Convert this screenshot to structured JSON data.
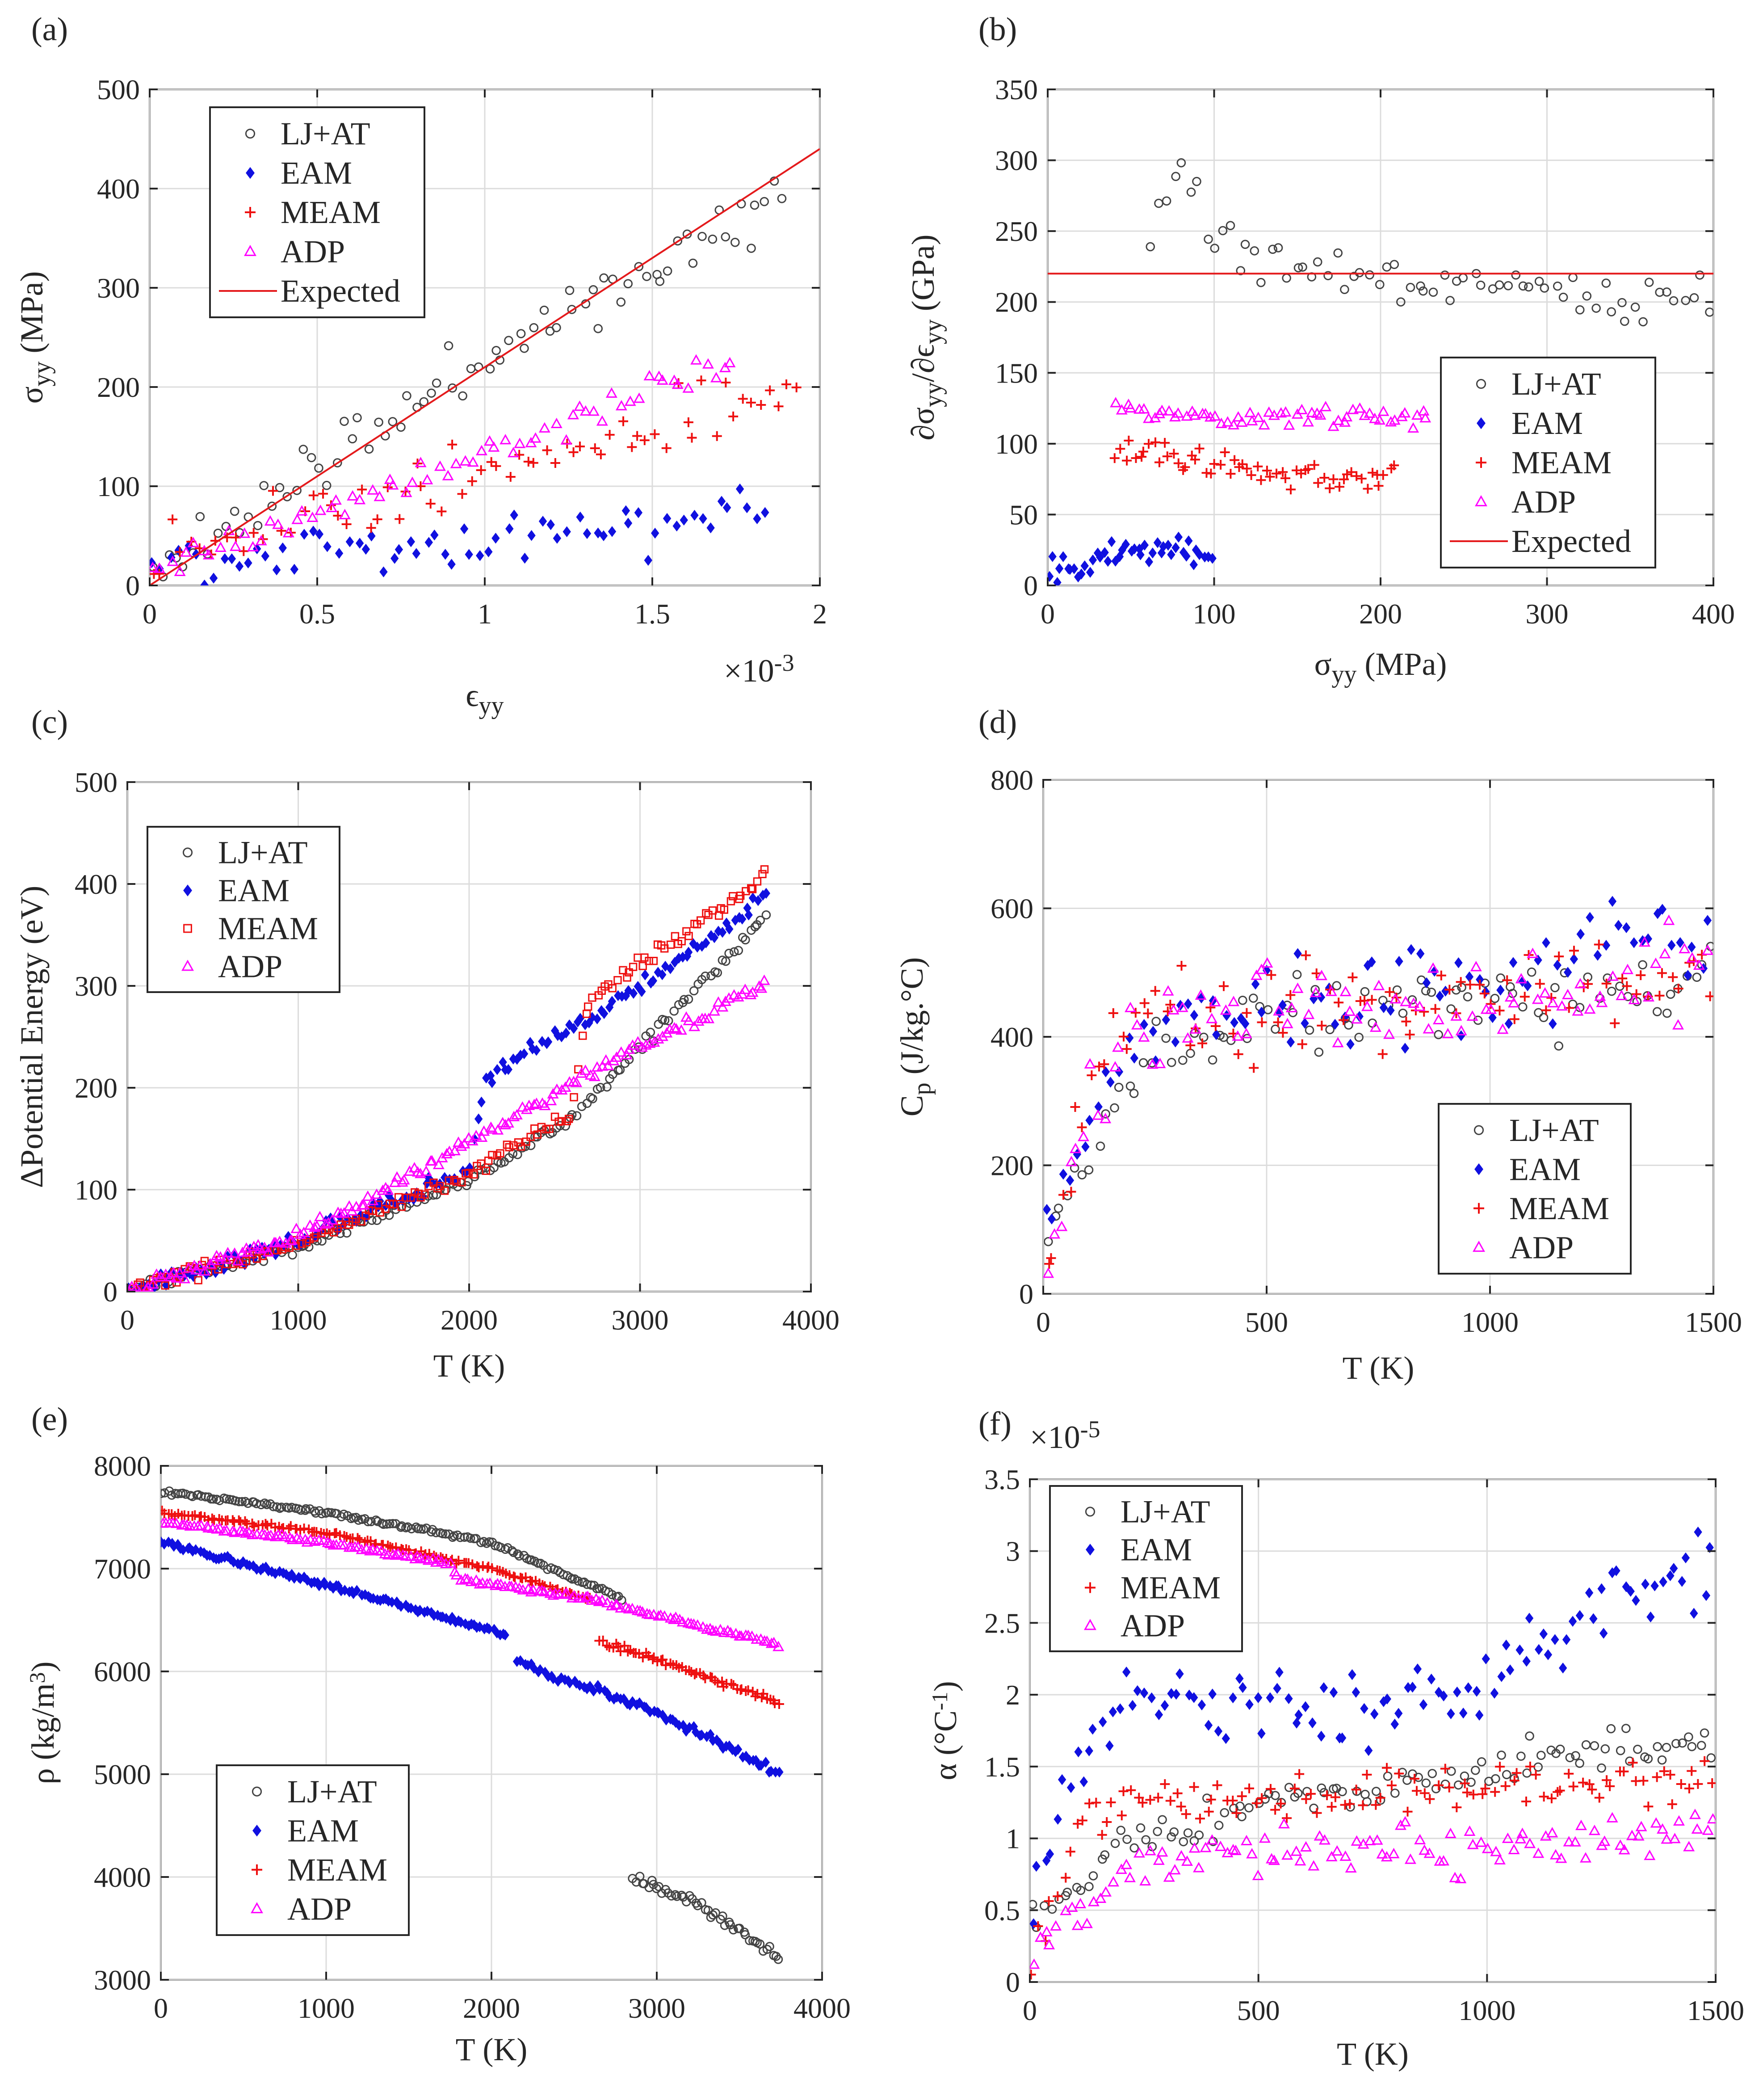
{
  "colors": {
    "LJ+AT": "#444444",
    "EAM": "#1010e0",
    "MEAM": "#ee1010",
    "ADP": "#ff00ff",
    "Expected": "#e41a1c"
  },
  "chart_data": [
    {
      "id": "a",
      "type": "scatter",
      "panel_label": "(a)",
      "title": "",
      "xlabel": "ϵyy",
      "ylabel": "σyy (MPa)",
      "x_multiplier_label": "×10",
      "x_multiplier_exp": "-3",
      "xlim": [
        0,
        2
      ],
      "ylim": [
        0,
        500
      ],
      "xticks": [
        0,
        0.5,
        1,
        1.5,
        2
      ],
      "xtick_labels": [
        "0",
        "0.5",
        "1",
        "1.5",
        "2"
      ],
      "yticks": [
        0,
        100,
        200,
        300,
        400,
        500
      ],
      "ytick_labels": [
        "0",
        "100",
        "200",
        "300",
        "400",
        "500"
      ],
      "grid": true,
      "legend_position": "top-left",
      "legend": [
        "LJ+AT",
        "EAM",
        "MEAM",
        "ADP",
        "Expected"
      ],
      "series": [
        {
          "name": "LJ+AT",
          "marker": "circle",
          "trend": [
            [
              0,
              10
            ],
            [
              0.5,
              120
            ],
            [
              1,
              230
            ],
            [
              1.5,
              320
            ],
            [
              1.9,
              390
            ]
          ],
          "noise": 22,
          "count": 80,
          "seed": 11
        },
        {
          "name": "EAM",
          "marker": "diamond",
          "trend": [
            [
              0,
              20
            ],
            [
              0.5,
              40
            ],
            [
              1,
              45
            ],
            [
              1.5,
              60
            ],
            [
              1.85,
              75
            ]
          ],
          "noise": 22,
          "count": 70,
          "seed": 12
        },
        {
          "name": "MEAM",
          "marker": "plus",
          "trend": [
            [
              0,
              40
            ],
            [
              0.5,
              70
            ],
            [
              1,
              110
            ],
            [
              1.5,
              160
            ],
            [
              1.95,
              200
            ]
          ],
          "noise": 22,
          "count": 70,
          "seed": 13
        },
        {
          "name": "ADP",
          "marker": "triangle",
          "trend": [
            [
              0,
              20
            ],
            [
              0.5,
              70
            ],
            [
              1,
              130
            ],
            [
              1.5,
              200
            ],
            [
              1.75,
              225
            ]
          ],
          "noise": 12,
          "count": 70,
          "seed": 14
        },
        {
          "name": "Expected",
          "marker": "line",
          "points": [
            [
              0,
              0
            ],
            [
              2,
              440
            ]
          ]
        }
      ]
    },
    {
      "id": "b",
      "type": "scatter",
      "panel_label": "(b)",
      "title": "",
      "xlabel": "σyy (MPa)",
      "ylabel": "∂σyy/∂ϵyy (GPa)",
      "xlim": [
        0,
        400
      ],
      "ylim": [
        0,
        350
      ],
      "xticks": [
        0,
        100,
        200,
        300,
        400
      ],
      "xtick_labels": [
        "0",
        "100",
        "200",
        "300",
        "400"
      ],
      "yticks": [
        0,
        50,
        100,
        150,
        200,
        250,
        300,
        350
      ],
      "ytick_labels": [
        "0",
        "50",
        "100",
        "150",
        "200",
        "250",
        "300",
        "350"
      ],
      "grid": true,
      "legend_position": "center-right",
      "legend": [
        "LJ+AT",
        "EAM",
        "MEAM",
        "ADP",
        "Expected"
      ],
      "series": [
        {
          "name": "LJ+AT",
          "marker": "circle",
          "trend": [
            [
              60,
              240
            ],
            [
              80,
              300
            ],
            [
              100,
              240
            ],
            [
              150,
              225
            ],
            [
              250,
              210
            ],
            [
              400,
              200
            ]
          ],
          "noise": 12,
          "count": 70,
          "seed": 21
        },
        {
          "name": "EAM",
          "marker": "diamond",
          "trend": [
            [
              0,
              15
            ],
            [
              20,
              15
            ],
            [
              40,
              25
            ],
            [
              60,
              25
            ],
            [
              100,
              25
            ]
          ],
          "noise": 8,
          "count": 45,
          "seed": 22
        },
        {
          "name": "MEAM",
          "marker": "plus",
          "trend": [
            [
              40,
              95
            ],
            [
              80,
              90
            ],
            [
              100,
              85
            ],
            [
              150,
              78
            ],
            [
              210,
              78
            ]
          ],
          "noise": 8,
          "count": 60,
          "seed": 23
        },
        {
          "name": "ADP",
          "marker": "triangle",
          "trend": [
            [
              40,
              130
            ],
            [
              60,
              120
            ],
            [
              100,
              118
            ],
            [
              230,
              120
            ]
          ],
          "noise": 5,
          "count": 60,
          "seed": 24
        },
        {
          "name": "Expected",
          "marker": "line",
          "points": [
            [
              0,
              220
            ],
            [
              400,
              220
            ]
          ]
        }
      ]
    },
    {
      "id": "c",
      "type": "scatter",
      "panel_label": "(c)",
      "title": "",
      "xlabel": "T (K)",
      "ylabel": "ΔPotential Energy (eV)",
      "xlim": [
        0,
        4000
      ],
      "ylim": [
        0,
        500
      ],
      "xticks": [
        0,
        1000,
        2000,
        3000,
        4000
      ],
      "xtick_labels": [
        "0",
        "1000",
        "2000",
        "3000",
        "4000"
      ],
      "yticks": [
        0,
        100,
        200,
        300,
        400,
        500
      ],
      "ytick_labels": [
        "0",
        "100",
        "200",
        "300",
        "400",
        "500"
      ],
      "grid": true,
      "legend_position": "top-left",
      "legend": [
        "LJ+AT",
        "EAM",
        "MEAM",
        "ADP"
      ],
      "series": [
        {
          "name": "LJ+AT",
          "marker": "circle",
          "trend": [
            [
              0,
              0
            ],
            [
              1000,
              45
            ],
            [
              2000,
              110
            ],
            [
              2600,
              170
            ],
            [
              3000,
              240
            ],
            [
              3750,
              370
            ]
          ],
          "noise": 5,
          "count": 160,
          "seed": 31
        },
        {
          "name": "EAM",
          "marker": "diamond",
          "trend": [
            [
              0,
              0
            ],
            [
              1000,
              50
            ],
            [
              2000,
              120
            ],
            [
              2100,
              210
            ],
            [
              3000,
              300
            ],
            [
              3750,
              390
            ]
          ],
          "noise": 6,
          "count": 160,
          "seed": 32
        },
        {
          "name": "MEAM",
          "marker": "square",
          "trend": [
            [
              0,
              0
            ],
            [
              1000,
              48
            ],
            [
              2000,
              115
            ],
            [
              2600,
              175
            ],
            [
              2700,
              285
            ],
            [
              3750,
              410
            ]
          ],
          "noise": 5,
          "count": 160,
          "seed": 33
        },
        {
          "name": "ADP",
          "marker": "triangle",
          "trend": [
            [
              0,
              0
            ],
            [
              1000,
              55
            ],
            [
              2000,
              145
            ],
            [
              3000,
              240
            ],
            [
              3750,
              305
            ]
          ],
          "noise": 5,
          "count": 160,
          "seed": 34
        }
      ]
    },
    {
      "id": "d",
      "type": "scatter",
      "panel_label": "(d)",
      "title": "",
      "xlabel": "T (K)",
      "ylabel": "Cp (J/kg.°C)",
      "xlim": [
        0,
        1500
      ],
      "ylim": [
        0,
        800
      ],
      "xticks": [
        0,
        500,
        1000,
        1500
      ],
      "xtick_labels": [
        "0",
        "500",
        "1000",
        "1500"
      ],
      "yticks": [
        0,
        200,
        400,
        600,
        800
      ],
      "ytick_labels": [
        "0",
        "200",
        "400",
        "600",
        "800"
      ],
      "grid": true,
      "legend_position": "bottom-right",
      "legend": [
        "LJ+AT",
        "EAM",
        "MEAM",
        "ADP"
      ],
      "series": [
        {
          "name": "LJ+AT",
          "marker": "circle",
          "trend": [
            [
              0,
              50
            ],
            [
              100,
              230
            ],
            [
              200,
              360
            ],
            [
              500,
              430
            ],
            [
              1000,
              460
            ],
            [
              1500,
              480
            ]
          ],
          "noise": 45,
          "count": 90,
          "seed": 41
        },
        {
          "name": "EAM",
          "marker": "diamond",
          "trend": [
            [
              0,
              80
            ],
            [
              100,
              300
            ],
            [
              200,
              400
            ],
            [
              500,
              450
            ],
            [
              1000,
              480
            ],
            [
              1500,
              560
            ]
          ],
          "noise": 55,
          "count": 90,
          "seed": 42
        },
        {
          "name": "MEAM",
          "marker": "plus",
          "trend": [
            [
              0,
              60
            ],
            [
              100,
              300
            ],
            [
              200,
              420
            ],
            [
              500,
              430
            ],
            [
              1000,
              460
            ],
            [
              1500,
              480
            ]
          ],
          "noise": 55,
          "count": 90,
          "seed": 43
        },
        {
          "name": "ADP",
          "marker": "triangle",
          "trend": [
            [
              0,
              40
            ],
            [
              100,
              280
            ],
            [
              200,
              420
            ],
            [
              500,
              460
            ],
            [
              1000,
              440
            ],
            [
              1500,
              500
            ]
          ],
          "noise": 60,
          "count": 90,
          "seed": 44
        }
      ]
    },
    {
      "id": "e",
      "type": "scatter",
      "panel_label": "(e)",
      "title": "",
      "xlabel": "T (K)",
      "ylabel": "ρ (kg/m3)",
      "xlim": [
        0,
        4000
      ],
      "ylim": [
        3000,
        8000
      ],
      "xticks": [
        0,
        1000,
        2000,
        3000,
        4000
      ],
      "xtick_labels": [
        "0",
        "1000",
        "2000",
        "3000",
        "4000"
      ],
      "yticks": [
        3000,
        4000,
        5000,
        6000,
        7000,
        8000
      ],
      "ytick_labels": [
        "3000",
        "4000",
        "5000",
        "6000",
        "7000",
        "8000"
      ],
      "grid": true,
      "legend_position": "bottom-left",
      "legend": [
        "LJ+AT",
        "EAM",
        "MEAM",
        "ADP"
      ],
      "series": [
        {
          "name": "LJ+AT",
          "marker": "circle",
          "trend": [
            [
              0,
              7750
            ],
            [
              1000,
              7550
            ],
            [
              2000,
              7250
            ],
            [
              2800,
              6700
            ]
          ],
          "noise": 15,
          "count": 150,
          "seed": 51
        },
        {
          "name": "LJ+AT",
          "marker": "circle",
          "legend": false,
          "trend": [
            [
              2850,
              4000
            ],
            [
              3300,
              3700
            ],
            [
              3750,
              3200
            ]
          ],
          "noise": 40,
          "count": 50,
          "seed": 52
        },
        {
          "name": "EAM",
          "marker": "diamond",
          "trend": [
            [
              0,
              7250
            ],
            [
              1000,
              6850
            ],
            [
              2100,
              6350
            ]
          ],
          "noise": 20,
          "count": 110,
          "seed": 53
        },
        {
          "name": "EAM",
          "marker": "diamond",
          "legend": false,
          "trend": [
            [
              2150,
              6100
            ],
            [
              3000,
              5600
            ],
            [
              3750,
              5000
            ]
          ],
          "noise": 30,
          "count": 80,
          "seed": 54
        },
        {
          "name": "MEAM",
          "marker": "plus",
          "trend": [
            [
              0,
              7550
            ],
            [
              1000,
              7350
            ],
            [
              2000,
              7000
            ],
            [
              2600,
              6700
            ]
          ],
          "noise": 15,
          "count": 130,
          "seed": 55
        },
        {
          "name": "MEAM",
          "marker": "plus",
          "legend": false,
          "trend": [
            [
              2650,
              6300
            ],
            [
              3200,
              6000
            ],
            [
              3750,
              5700
            ]
          ],
          "noise": 25,
          "count": 60,
          "seed": 56
        },
        {
          "name": "ADP",
          "marker": "triangle",
          "trend": [
            [
              0,
              7450
            ],
            [
              1000,
              7250
            ],
            [
              1750,
              7050
            ],
            [
              1800,
              6900
            ],
            [
              2600,
              6700
            ],
            [
              3750,
              6250
            ]
          ],
          "noise": 15,
          "count": 170,
          "seed": 57
        }
      ]
    },
    {
      "id": "f",
      "type": "scatter",
      "panel_label": "(f)",
      "title": "",
      "xlabel": "T (K)",
      "ylabel": "α (°C-1)",
      "y_multiplier_label": "×10",
      "y_multiplier_exp": "-5",
      "xlim": [
        0,
        1500
      ],
      "ylim": [
        0,
        3.5
      ],
      "xticks": [
        0,
        500,
        1000,
        1500
      ],
      "xtick_labels": [
        "0",
        "500",
        "1000",
        "1500"
      ],
      "yticks": [
        0,
        0.5,
        1,
        1.5,
        2,
        2.5,
        3,
        3.5
      ],
      "ytick_labels": [
        "0",
        "0.5",
        "1",
        "1.5",
        "2",
        "2.5",
        "3",
        "3.5"
      ],
      "grid": true,
      "legend_position": "top-left",
      "legend": [
        "LJ+AT",
        "EAM",
        "MEAM",
        "ADP"
      ],
      "series": [
        {
          "name": "LJ+AT",
          "marker": "circle",
          "trend": [
            [
              0,
              0.4
            ],
            [
              100,
              0.6
            ],
            [
              200,
              1.0
            ],
            [
              500,
              1.2
            ],
            [
              1000,
              1.5
            ],
            [
              1500,
              1.7
            ]
          ],
          "noise": 0.12,
          "count": 110,
          "seed": 61
        },
        {
          "name": "EAM",
          "marker": "diamond",
          "trend": [
            [
              0,
              0.5
            ],
            [
              100,
              1.6
            ],
            [
              200,
              2.0
            ],
            [
              500,
              1.9
            ],
            [
              1000,
              2.0
            ],
            [
              1200,
              2.6
            ],
            [
              1500,
              2.9
            ]
          ],
          "noise": 0.2,
          "count": 110,
          "seed": 62
        },
        {
          "name": "MEAM",
          "marker": "plus",
          "trend": [
            [
              0,
              0.2
            ],
            [
              100,
              1.0
            ],
            [
              200,
              1.25
            ],
            [
              500,
              1.3
            ],
            [
              1000,
              1.35
            ],
            [
              1500,
              1.4
            ]
          ],
          "noise": 0.12,
          "count": 110,
          "seed": 63
        },
        {
          "name": "ADP",
          "marker": "triangle",
          "trend": [
            [
              0,
              0.1
            ],
            [
              100,
              0.5
            ],
            [
              200,
              0.8
            ],
            [
              500,
              0.9
            ],
            [
              1000,
              0.9
            ],
            [
              1500,
              1.1
            ]
          ],
          "noise": 0.12,
          "count": 110,
          "seed": 64
        }
      ]
    }
  ]
}
